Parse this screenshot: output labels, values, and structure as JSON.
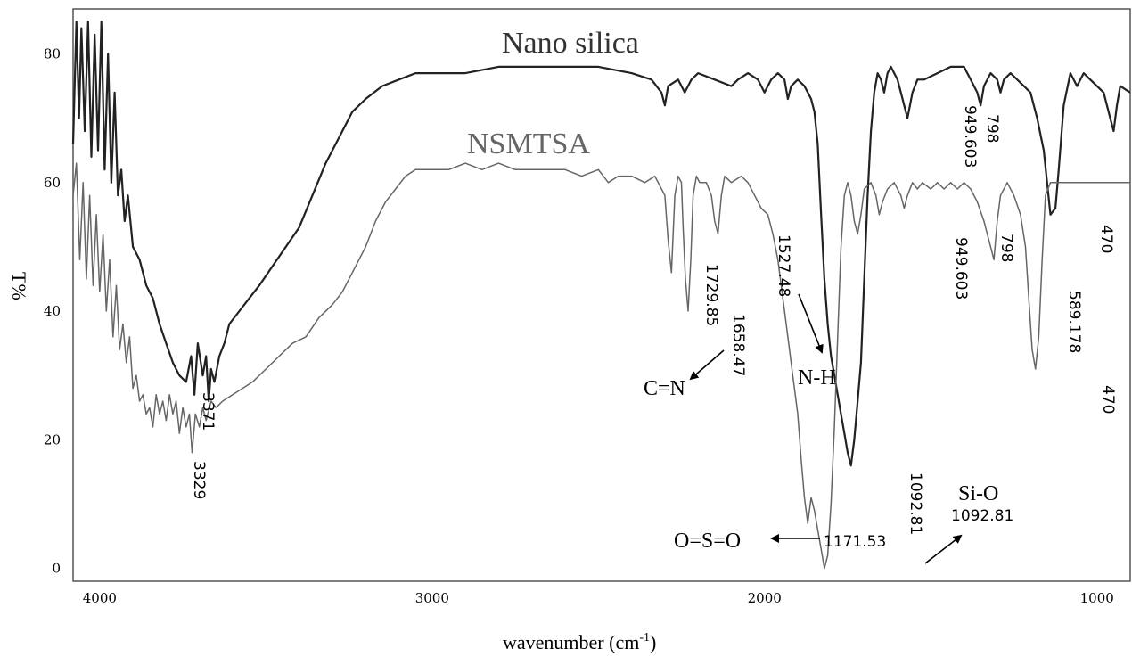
{
  "chart_data": {
    "type": "line",
    "xlabel": "wavenumber (cm-1)",
    "xlabel_main": "wavenumber (cm",
    "xlabel_sup": "-1",
    "xlabel_close": ")",
    "ylabel": "T%",
    "xlim": [
      4080,
      900
    ],
    "ylim": [
      -2,
      87
    ],
    "x_ticks": [
      4000,
      3000,
      2000,
      1000
    ],
    "y_ticks": [
      0,
      20,
      40,
      60,
      80
    ],
    "grid": false,
    "colors": {
      "nano": "#222222",
      "nsmtsa": "#666666",
      "axes": "#555555"
    },
    "series": [
      {
        "name": "Nano silica",
        "points": [
          [
            4080,
            66
          ],
          [
            4070,
            85
          ],
          [
            4062,
            70
          ],
          [
            4055,
            84
          ],
          [
            4045,
            68
          ],
          [
            4035,
            85
          ],
          [
            4025,
            64
          ],
          [
            4015,
            83
          ],
          [
            4005,
            65
          ],
          [
            3995,
            85
          ],
          [
            3985,
            62
          ],
          [
            3975,
            80
          ],
          [
            3965,
            60
          ],
          [
            3955,
            74
          ],
          [
            3945,
            58
          ],
          [
            3935,
            62
          ],
          [
            3925,
            54
          ],
          [
            3915,
            58
          ],
          [
            3900,
            50
          ],
          [
            3880,
            48
          ],
          [
            3860,
            44
          ],
          [
            3840,
            42
          ],
          [
            3820,
            38
          ],
          [
            3800,
            35
          ],
          [
            3780,
            32
          ],
          [
            3760,
            30
          ],
          [
            3740,
            29
          ],
          [
            3725,
            33
          ],
          [
            3715,
            27
          ],
          [
            3705,
            35
          ],
          [
            3690,
            30
          ],
          [
            3680,
            33
          ],
          [
            3672,
            26
          ],
          [
            3665,
            31
          ],
          [
            3655,
            29
          ],
          [
            3640,
            33
          ],
          [
            3625,
            35
          ],
          [
            3610,
            38
          ],
          [
            3580,
            40
          ],
          [
            3550,
            42
          ],
          [
            3520,
            44
          ],
          [
            3480,
            47
          ],
          [
            3440,
            50
          ],
          [
            3400,
            53
          ],
          [
            3360,
            58
          ],
          [
            3320,
            63
          ],
          [
            3280,
            67
          ],
          [
            3240,
            71
          ],
          [
            3200,
            73
          ],
          [
            3150,
            75
          ],
          [
            3100,
            76
          ],
          [
            3050,
            77
          ],
          [
            3000,
            77
          ],
          [
            2900,
            77
          ],
          [
            2800,
            78
          ],
          [
            2700,
            78
          ],
          [
            2600,
            78
          ],
          [
            2500,
            78
          ],
          [
            2400,
            77
          ],
          [
            2340,
            76
          ],
          [
            2310,
            74
          ],
          [
            2300,
            72
          ],
          [
            2290,
            75
          ],
          [
            2260,
            76
          ],
          [
            2240,
            74
          ],
          [
            2220,
            76
          ],
          [
            2200,
            77
          ],
          [
            2150,
            76
          ],
          [
            2100,
            75
          ],
          [
            2080,
            76
          ],
          [
            2050,
            77
          ],
          [
            2020,
            76
          ],
          [
            2000,
            74
          ],
          [
            1980,
            76
          ],
          [
            1960,
            77
          ],
          [
            1940,
            76
          ],
          [
            1930,
            73
          ],
          [
            1920,
            75
          ],
          [
            1900,
            76
          ],
          [
            1880,
            75
          ],
          [
            1860,
            73
          ],
          [
            1850,
            71
          ],
          [
            1840,
            66
          ],
          [
            1830,
            55
          ],
          [
            1820,
            45
          ],
          [
            1810,
            38
          ],
          [
            1800,
            33
          ],
          [
            1790,
            30
          ],
          [
            1780,
            27
          ],
          [
            1770,
            24
          ],
          [
            1760,
            21
          ],
          [
            1750,
            18
          ],
          [
            1740,
            16
          ],
          [
            1730,
            20
          ],
          [
            1720,
            26
          ],
          [
            1710,
            32
          ],
          [
            1700,
            45
          ],
          [
            1690,
            58
          ],
          [
            1680,
            68
          ],
          [
            1670,
            74
          ],
          [
            1660,
            77
          ],
          [
            1650,
            76
          ],
          [
            1640,
            74
          ],
          [
            1630,
            77
          ],
          [
            1620,
            78
          ],
          [
            1600,
            76
          ],
          [
            1590,
            74
          ],
          [
            1580,
            72
          ],
          [
            1570,
            70
          ],
          [
            1555,
            74
          ],
          [
            1540,
            76
          ],
          [
            1520,
            76
          ],
          [
            1480,
            77
          ],
          [
            1440,
            78
          ],
          [
            1400,
            78
          ],
          [
            1380,
            76
          ],
          [
            1360,
            74
          ],
          [
            1350,
            72
          ],
          [
            1340,
            75
          ],
          [
            1320,
            77
          ],
          [
            1300,
            76
          ],
          [
            1290,
            74
          ],
          [
            1280,
            76
          ],
          [
            1260,
            77
          ],
          [
            1240,
            76
          ],
          [
            1220,
            75
          ],
          [
            1200,
            74
          ],
          [
            1180,
            70
          ],
          [
            1160,
            65
          ],
          [
            1140,
            55
          ],
          [
            1125,
            56
          ],
          [
            1115,
            62
          ],
          [
            1100,
            72
          ],
          [
            1080,
            77
          ],
          [
            1060,
            75
          ],
          [
            1040,
            77
          ],
          [
            1020,
            76
          ],
          [
            1000,
            75
          ],
          [
            980,
            74
          ],
          [
            970,
            72
          ],
          [
            960,
            70
          ],
          [
            950,
            68
          ],
          [
            940,
            72
          ],
          [
            930,
            75
          ],
          [
            900,
            74
          ]
        ]
      },
      {
        "name": "NSMTSA",
        "points": [
          [
            4080,
            58
          ],
          [
            4070,
            63
          ],
          [
            4060,
            48
          ],
          [
            4050,
            60
          ],
          [
            4040,
            45
          ],
          [
            4030,
            58
          ],
          [
            4020,
            44
          ],
          [
            4010,
            55
          ],
          [
            4000,
            43
          ],
          [
            3990,
            52
          ],
          [
            3980,
            40
          ],
          [
            3970,
            48
          ],
          [
            3960,
            36
          ],
          [
            3950,
            44
          ],
          [
            3940,
            34
          ],
          [
            3930,
            38
          ],
          [
            3920,
            32
          ],
          [
            3910,
            36
          ],
          [
            3900,
            28
          ],
          [
            3890,
            30
          ],
          [
            3880,
            26
          ],
          [
            3870,
            27
          ],
          [
            3860,
            24
          ],
          [
            3850,
            25
          ],
          [
            3840,
            22
          ],
          [
            3830,
            27
          ],
          [
            3820,
            24
          ],
          [
            3810,
            26
          ],
          [
            3800,
            23
          ],
          [
            3790,
            27
          ],
          [
            3780,
            24
          ],
          [
            3770,
            26
          ],
          [
            3760,
            21
          ],
          [
            3750,
            25
          ],
          [
            3740,
            22
          ],
          [
            3730,
            24
          ],
          [
            3722,
            18
          ],
          [
            3712,
            24
          ],
          [
            3700,
            22
          ],
          [
            3690,
            25
          ],
          [
            3680,
            23
          ],
          [
            3665,
            26
          ],
          [
            3650,
            25
          ],
          [
            3630,
            26
          ],
          [
            3600,
            27
          ],
          [
            3570,
            28
          ],
          [
            3540,
            29
          ],
          [
            3500,
            31
          ],
          [
            3460,
            33
          ],
          [
            3420,
            35
          ],
          [
            3380,
            36
          ],
          [
            3340,
            39
          ],
          [
            3300,
            41
          ],
          [
            3270,
            43
          ],
          [
            3240,
            46
          ],
          [
            3200,
            50
          ],
          [
            3170,
            54
          ],
          [
            3140,
            57
          ],
          [
            3110,
            59
          ],
          [
            3080,
            61
          ],
          [
            3050,
            62
          ],
          [
            3000,
            62
          ],
          [
            2950,
            62
          ],
          [
            2900,
            63
          ],
          [
            2850,
            62
          ],
          [
            2800,
            63
          ],
          [
            2750,
            62
          ],
          [
            2700,
            62
          ],
          [
            2650,
            62
          ],
          [
            2600,
            62
          ],
          [
            2550,
            61
          ],
          [
            2500,
            62
          ],
          [
            2470,
            60
          ],
          [
            2440,
            61
          ],
          [
            2400,
            61
          ],
          [
            2360,
            60
          ],
          [
            2330,
            61
          ],
          [
            2300,
            58
          ],
          [
            2290,
            51
          ],
          [
            2280,
            46
          ],
          [
            2270,
            58
          ],
          [
            2260,
            61
          ],
          [
            2250,
            60
          ],
          [
            2245,
            53
          ],
          [
            2238,
            45
          ],
          [
            2230,
            40
          ],
          [
            2222,
            48
          ],
          [
            2215,
            58
          ],
          [
            2205,
            61
          ],
          [
            2195,
            60
          ],
          [
            2175,
            60
          ],
          [
            2160,
            58
          ],
          [
            2150,
            54
          ],
          [
            2140,
            52
          ],
          [
            2130,
            58
          ],
          [
            2120,
            61
          ],
          [
            2100,
            60
          ],
          [
            2070,
            61
          ],
          [
            2050,
            60
          ],
          [
            2030,
            58
          ],
          [
            2010,
            56
          ],
          [
            1990,
            55
          ],
          [
            1975,
            52
          ],
          [
            1960,
            48
          ],
          [
            1945,
            42
          ],
          [
            1930,
            36
          ],
          [
            1915,
            30
          ],
          [
            1900,
            24
          ],
          [
            1890,
            17
          ],
          [
            1880,
            11
          ],
          [
            1870,
            7
          ],
          [
            1860,
            11
          ],
          [
            1850,
            9
          ],
          [
            1840,
            6
          ],
          [
            1830,
            3
          ],
          [
            1820,
            0
          ],
          [
            1810,
            2
          ],
          [
            1800,
            10
          ],
          [
            1790,
            22
          ],
          [
            1780,
            36
          ],
          [
            1770,
            50
          ],
          [
            1760,
            58
          ],
          [
            1750,
            60
          ],
          [
            1740,
            58
          ],
          [
            1730,
            54
          ],
          [
            1720,
            52
          ],
          [
            1710,
            55
          ],
          [
            1700,
            59
          ],
          [
            1680,
            60
          ],
          [
            1665,
            58
          ],
          [
            1655,
            55
          ],
          [
            1645,
            57
          ],
          [
            1630,
            59
          ],
          [
            1610,
            60
          ],
          [
            1590,
            58
          ],
          [
            1580,
            56
          ],
          [
            1570,
            58
          ],
          [
            1555,
            60
          ],
          [
            1540,
            59
          ],
          [
            1525,
            60
          ],
          [
            1500,
            59
          ],
          [
            1480,
            60
          ],
          [
            1460,
            59
          ],
          [
            1440,
            60
          ],
          [
            1420,
            59
          ],
          [
            1400,
            60
          ],
          [
            1380,
            59
          ],
          [
            1360,
            57
          ],
          [
            1340,
            54
          ],
          [
            1320,
            50
          ],
          [
            1310,
            48
          ],
          [
            1300,
            54
          ],
          [
            1290,
            58
          ],
          [
            1270,
            60
          ],
          [
            1250,
            58
          ],
          [
            1230,
            55
          ],
          [
            1215,
            50
          ],
          [
            1205,
            42
          ],
          [
            1195,
            34
          ],
          [
            1185,
            31
          ],
          [
            1175,
            36
          ],
          [
            1165,
            48
          ],
          [
            1155,
            58
          ],
          [
            1140,
            60
          ],
          [
            900,
            60
          ]
        ]
      }
    ],
    "annotations": {
      "series_labels": [
        "Nano silica",
        "NSMTSA"
      ],
      "peaks": [
        "3371",
        "3329",
        "1729.85",
        "1658.47",
        "1527.48",
        "949.603",
        "798",
        "949.603",
        "798",
        "589.178",
        "470",
        "470",
        "1092.81",
        "1092.81",
        "1171.53"
      ],
      "groups": [
        "C=N",
        "N-H",
        "Si-O",
        "O=S=O"
      ]
    }
  }
}
